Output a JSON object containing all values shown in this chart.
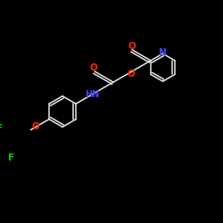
{
  "background_color": "#000000",
  "bond_color": "#e8e8e8",
  "atom_colors": {
    "N": "#4444ff",
    "O": "#ff2200",
    "F": "#00cc00",
    "C": "#e8e8e8"
  },
  "figsize": [
    2.5,
    2.5
  ],
  "dpi": 100
}
